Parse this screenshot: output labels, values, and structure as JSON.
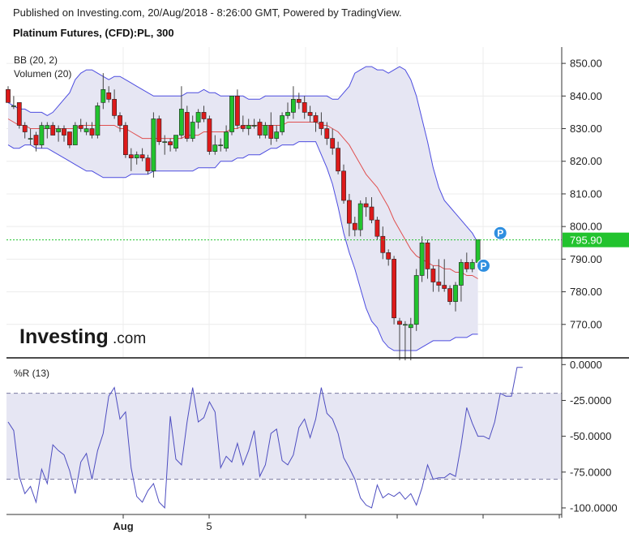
{
  "header": {
    "published": "Published on Investing.com, 20/Aug/2018 - 8:26:00 GMT, Powered by TradingView."
  },
  "title": "Platinum Futures, (CFD):PL, 300",
  "brand": {
    "name": "Investing",
    "suffix": ".com"
  },
  "indicators": {
    "bb": "BB (20, 2)",
    "volume": "Volumen (20)",
    "wr": "%R (13)"
  },
  "colors": {
    "up": "#22c32e",
    "down": "#dd1a1a",
    "band": "#4d4de0",
    "mid": "#e05050",
    "band_fill": "#e6e6f3",
    "wr_line": "#4d4dc0",
    "last": "#22c32e",
    "marker": "#2f8fe0"
  },
  "chart_data": [
    {
      "type": "candlestick",
      "yticks": [
        "850.00",
        "840.00",
        "830.00",
        "820.00",
        "810.00",
        "800.00",
        "790.00",
        "780.00",
        "770.00"
      ],
      "ylim": [
        760,
        855
      ],
      "xticks": [
        "Aug",
        "5",
        "",
        "",
        "",
        ""
      ],
      "last_price": 795.9,
      "last_label": "795.90",
      "markers": [
        {
          "label": "P",
          "index": 88,
          "price": 798
        },
        {
          "label": "P",
          "index": 85,
          "price": 788
        }
      ],
      "candles": [
        [
          842,
          843,
          838,
          838
        ],
        [
          837,
          840,
          836,
          837
        ],
        [
          838,
          838,
          830,
          831
        ],
        [
          831,
          832,
          827,
          829
        ],
        [
          827,
          830,
          825,
          827
        ],
        [
          828,
          829,
          823,
          825
        ],
        [
          825,
          832,
          824,
          831
        ],
        [
          830,
          832,
          827,
          831
        ],
        [
          831,
          832,
          828,
          828
        ],
        [
          829,
          831,
          826,
          830
        ],
        [
          830,
          831,
          826,
          828
        ],
        [
          829,
          829,
          824,
          825
        ],
        [
          825,
          832,
          825,
          831
        ],
        [
          831,
          833,
          829,
          830
        ],
        [
          829,
          832,
          828,
          830
        ],
        [
          830,
          832,
          827,
          828
        ],
        [
          828,
          838,
          827,
          837
        ],
        [
          838,
          847,
          836,
          842
        ],
        [
          841,
          843,
          838,
          839
        ],
        [
          839,
          842,
          833,
          834
        ],
        [
          834,
          835,
          829,
          831
        ],
        [
          831,
          832,
          821,
          822
        ],
        [
          822,
          824,
          817,
          821
        ],
        [
          821,
          823,
          819,
          822
        ],
        [
          822,
          824,
          820,
          821
        ],
        [
          821,
          822,
          816,
          817
        ],
        [
          817,
          835,
          815,
          833
        ],
        [
          833,
          834,
          825,
          826
        ],
        [
          826,
          828,
          822,
          826
        ],
        [
          826,
          827,
          823,
          825
        ],
        [
          824,
          828,
          823,
          828
        ],
        [
          828,
          843,
          827,
          836
        ],
        [
          835,
          837,
          826,
          827
        ],
        [
          827,
          834,
          826,
          832
        ],
        [
          832,
          836,
          830,
          835
        ],
        [
          835,
          837,
          832,
          833
        ],
        [
          833,
          834,
          822,
          823
        ],
        [
          823,
          828,
          822,
          825
        ],
        [
          825,
          827,
          823,
          825
        ],
        [
          824,
          831,
          823,
          829
        ],
        [
          829,
          840,
          828,
          840
        ],
        [
          840,
          842,
          830,
          831
        ],
        [
          831,
          834,
          829,
          830
        ],
        [
          830,
          833,
          828,
          831
        ],
        [
          831,
          833,
          830,
          831
        ],
        [
          832,
          833,
          827,
          828
        ],
        [
          828,
          832,
          827,
          831
        ],
        [
          831,
          835,
          825,
          827
        ],
        [
          827,
          831,
          826,
          829
        ],
        [
          829,
          835,
          828,
          834
        ],
        [
          834,
          838,
          833,
          835
        ],
        [
          835,
          843,
          833,
          839
        ],
        [
          839,
          841,
          836,
          838
        ],
        [
          838,
          840,
          833,
          835
        ],
        [
          835,
          837,
          832,
          834
        ],
        [
          834,
          835,
          829,
          832
        ],
        [
          832,
          835,
          828,
          830
        ],
        [
          830,
          832,
          825,
          827
        ],
        [
          827,
          830,
          822,
          824
        ],
        [
          824,
          826,
          816,
          817
        ],
        [
          817,
          819,
          807,
          808
        ],
        [
          808,
          810,
          797,
          801
        ],
        [
          801,
          803,
          797,
          799
        ],
        [
          799,
          808,
          797,
          807
        ],
        [
          807,
          809,
          803,
          806
        ],
        [
          806,
          809,
          801,
          802
        ],
        [
          802,
          803,
          796,
          797
        ],
        [
          797,
          800,
          790,
          792
        ],
        [
          792,
          793,
          788,
          790
        ],
        [
          790,
          791,
          770,
          772
        ],
        [
          771,
          772,
          759,
          770
        ],
        [
          770,
          771,
          759,
          770
        ],
        [
          769,
          772,
          759,
          770
        ],
        [
          770,
          787,
          768,
          785
        ],
        [
          785,
          797,
          783,
          795
        ],
        [
          795,
          796,
          784,
          787
        ],
        [
          787,
          788,
          780,
          783
        ],
        [
          783,
          790,
          780,
          782
        ],
        [
          782,
          790,
          780,
          781
        ],
        [
          781,
          782,
          776,
          777
        ],
        [
          777,
          783,
          774,
          782
        ],
        [
          782,
          790,
          777,
          789
        ],
        [
          789,
          792,
          786,
          787
        ],
        [
          787,
          790,
          786,
          789
        ],
        [
          789,
          796,
          788,
          796
        ]
      ],
      "bb_upper": [
        838,
        837,
        836,
        836,
        835,
        835,
        835,
        834,
        835,
        837,
        839,
        841,
        845,
        847,
        848,
        848,
        847,
        846,
        845,
        846,
        846,
        845,
        844,
        843,
        842,
        841,
        840,
        840,
        840,
        840,
        840,
        840,
        841,
        841,
        841,
        842,
        841,
        841,
        840,
        840,
        840,
        840,
        840,
        839,
        839,
        839,
        840,
        840,
        840,
        840,
        840,
        840,
        840,
        840,
        840,
        840,
        840,
        840,
        839,
        839,
        841,
        843,
        847,
        848,
        849,
        849,
        848,
        848,
        847,
        848,
        849,
        848,
        845,
        840,
        833,
        826,
        818,
        812,
        808,
        806,
        804,
        802,
        800,
        798,
        795
      ],
      "bb_middle": [
        833,
        832,
        831,
        831,
        830,
        830,
        830,
        830,
        830,
        830,
        830,
        830,
        830,
        831,
        831,
        831,
        831,
        831,
        831,
        831,
        830,
        830,
        829,
        828,
        827,
        827,
        827,
        827,
        827,
        827,
        827,
        827,
        828,
        828,
        828,
        829,
        829,
        829,
        829,
        829,
        830,
        830,
        831,
        831,
        831,
        831,
        831,
        831,
        831,
        831,
        832,
        832,
        832,
        832,
        832,
        832,
        831,
        831,
        830,
        829,
        827,
        825,
        822,
        819,
        816,
        814,
        812,
        809,
        806,
        802,
        799,
        796,
        793,
        791,
        790,
        789,
        788,
        788,
        787,
        787,
        786,
        786,
        785,
        785,
        784
      ],
      "bb_lower": [
        825,
        824,
        824,
        825,
        825,
        824,
        824,
        824,
        823,
        822,
        821,
        820,
        819,
        818,
        817,
        817,
        816,
        815,
        815,
        815,
        815,
        815,
        816,
        816,
        816,
        816,
        817,
        817,
        817,
        817,
        817,
        817,
        817,
        817,
        818,
        818,
        818,
        818,
        820,
        820,
        820,
        821,
        821,
        822,
        822,
        822,
        823,
        824,
        824,
        825,
        825,
        825,
        826,
        826,
        826,
        826,
        822,
        818,
        813,
        806,
        798,
        792,
        787,
        781,
        775,
        771,
        769,
        765,
        763,
        762,
        762,
        762,
        762,
        762,
        763,
        764,
        765,
        765,
        765,
        765,
        766,
        766,
        766,
        767,
        767
      ]
    },
    {
      "type": "line",
      "name": "%R (13)",
      "yticks": [
        "0.0000",
        "-25.0000",
        "-50.0000",
        "-75.0000",
        "-100.0000"
      ],
      "ylim": [
        -104,
        3
      ],
      "levels": [
        -20,
        -80
      ],
      "values": [
        -40,
        -46,
        -78,
        -90,
        -85,
        -96,
        -73,
        -83,
        -56,
        -60,
        -63,
        -74,
        -90,
        -68,
        -62,
        -80,
        -60,
        -48,
        -22,
        -16,
        -38,
        -33,
        -72,
        -92,
        -96,
        -88,
        -83,
        -96,
        -100,
        -36,
        -66,
        -70,
        -40,
        -16,
        -40,
        -37,
        -26,
        -33,
        -72,
        -64,
        -68,
        -55,
        -70,
        -60,
        -46,
        -78,
        -70,
        -48,
        -45,
        -67,
        -70,
        -63,
        -44,
        -38,
        -51,
        -38,
        -16,
        -34,
        -38,
        -48,
        -65,
        -72,
        -80,
        -93,
        -98,
        -100,
        -84,
        -93,
        -90,
        -92,
        -89,
        -94,
        -90,
        -98,
        -86,
        -70,
        -80,
        -79,
        -79,
        -76,
        -78,
        -56,
        -30,
        -41,
        -50,
        -50,
        -52,
        -40,
        -20,
        -22,
        -22,
        -2,
        -2
      ]
    }
  ]
}
